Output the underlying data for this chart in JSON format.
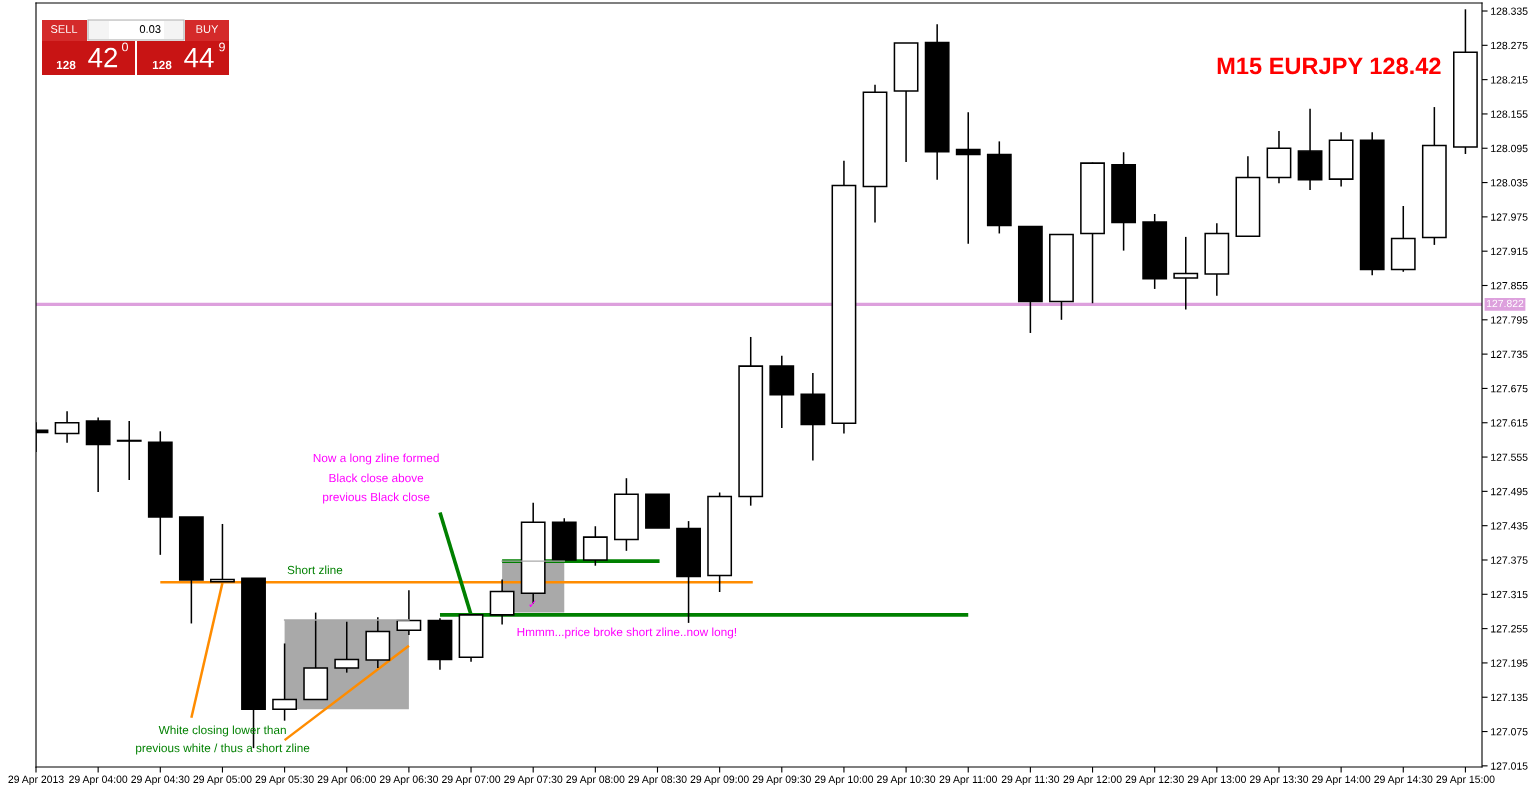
{
  "chart_data": {
    "type": "candlestick",
    "title": "M15 EURJPY 128.42",
    "x": [
      "2013-04-29T03:30",
      "2013-04-29T03:45",
      "2013-04-29T04:00",
      "2013-04-29T04:15",
      "2013-04-29T04:30",
      "2013-04-29T04:45",
      "2013-04-29T05:00",
      "2013-04-29T05:15",
      "2013-04-29T05:30",
      "2013-04-29T05:45",
      "2013-04-29T06:00",
      "2013-04-29T06:15",
      "2013-04-29T06:30",
      "2013-04-29T06:45",
      "2013-04-29T07:00",
      "2013-04-29T07:15",
      "2013-04-29T07:30",
      "2013-04-29T07:45",
      "2013-04-29T08:00",
      "2013-04-29T08:15",
      "2013-04-29T08:30",
      "2013-04-29T08:45",
      "2013-04-29T09:00",
      "2013-04-29T09:15",
      "2013-04-29T09:30",
      "2013-04-29T09:45",
      "2013-04-29T10:00",
      "2013-04-29T10:15",
      "2013-04-29T10:30",
      "2013-04-29T10:45",
      "2013-04-29T11:00",
      "2013-04-29T11:15",
      "2013-04-29T11:30",
      "2013-04-29T11:45",
      "2013-04-29T12:00",
      "2013-04-29T12:15",
      "2013-04-29T12:30",
      "2013-04-29T12:45",
      "2013-04-29T13:00",
      "2013-04-29T13:15",
      "2013-04-29T13:30",
      "2013-04-29T13:45",
      "2013-04-29T14:00",
      "2013-04-29T14:15",
      "2013-04-29T14:30",
      "2013-04-29T14:45",
      "2013-04-29T15:00"
    ],
    "ohlc": [
      [
        127.602,
        127.616,
        127.564,
        127.598
      ],
      [
        127.596,
        127.635,
        127.58,
        127.615
      ],
      [
        127.618,
        127.624,
        127.494,
        127.577
      ],
      [
        127.584,
        127.618,
        127.515,
        127.583
      ],
      [
        127.581,
        127.6,
        127.384,
        127.45
      ],
      [
        127.45,
        127.45,
        127.264,
        127.34
      ],
      [
        127.337,
        127.438,
        127.337,
        127.341
      ],
      [
        127.343,
        127.343,
        127.046,
        127.114
      ],
      [
        127.114,
        127.229,
        127.094,
        127.131
      ],
      [
        127.131,
        127.283,
        127.131,
        127.186
      ],
      [
        127.186,
        127.267,
        127.178,
        127.201
      ],
      [
        127.2,
        127.275,
        127.186,
        127.25
      ],
      [
        127.252,
        127.322,
        127.244,
        127.269
      ],
      [
        127.269,
        127.273,
        127.183,
        127.201
      ],
      [
        127.205,
        127.279,
        127.197,
        127.279
      ],
      [
        127.279,
        127.341,
        127.262,
        127.32
      ],
      [
        127.317,
        127.475,
        127.299,
        127.441
      ],
      [
        127.441,
        127.448,
        127.375,
        127.375
      ],
      [
        127.375,
        127.434,
        127.365,
        127.415
      ],
      [
        127.411,
        127.518,
        127.391,
        127.49
      ],
      [
        127.49,
        127.49,
        127.431,
        127.431
      ],
      [
        127.43,
        127.443,
        127.265,
        127.346
      ],
      [
        127.348,
        127.493,
        127.319,
        127.486
      ],
      [
        127.486,
        127.765,
        127.47,
        127.714
      ],
      [
        127.714,
        127.732,
        127.606,
        127.664
      ],
      [
        127.665,
        127.702,
        127.549,
        127.612
      ],
      [
        127.614,
        128.073,
        127.596,
        128.03
      ],
      [
        128.028,
        128.206,
        127.965,
        128.193
      ],
      [
        128.195,
        128.279,
        128.071,
        128.279
      ],
      [
        128.28,
        128.312,
        128.04,
        128.089
      ],
      [
        128.093,
        128.158,
        127.928,
        128.084
      ],
      [
        128.084,
        128.107,
        127.946,
        127.96
      ],
      [
        127.958,
        127.958,
        127.772,
        127.827
      ],
      [
        127.827,
        127.944,
        127.795,
        127.944
      ],
      [
        127.946,
        128.07,
        127.824,
        128.069
      ],
      [
        128.066,
        128.088,
        127.916,
        127.965
      ],
      [
        127.966,
        127.98,
        127.849,
        127.867
      ],
      [
        127.868,
        127.94,
        127.813,
        127.876
      ],
      [
        127.875,
        127.964,
        127.837,
        127.946
      ],
      [
        127.941,
        128.081,
        127.94,
        128.044
      ],
      [
        128.044,
        128.125,
        128.034,
        128.095
      ],
      [
        128.09,
        128.164,
        128.022,
        128.04
      ],
      [
        128.041,
        128.123,
        128.028,
        128.109
      ],
      [
        128.109,
        128.123,
        127.873,
        127.883
      ],
      [
        127.883,
        127.994,
        127.879,
        127.937
      ],
      [
        127.939,
        128.167,
        127.926,
        128.1
      ],
      [
        128.097,
        128.338,
        128.085,
        128.263
      ]
    ],
    "series": [
      {
        "type": "line",
        "color": "#a9a9a9",
        "x": [
          "2013-04-29T05:30",
          "2013-04-29T06:30"
        ],
        "values": [
          127.27,
          127.27
        ],
        "lower": [
          127.114,
          127.114
        ],
        "upper": [
          127.27,
          127.27
        ]
      },
      {
        "type": "line",
        "color": "#a9a9a9",
        "x": [
          "2013-04-29T07:15",
          "2013-04-29T07:45"
        ],
        "values": [
          127.373,
          127.373
        ],
        "lower": [
          127.283,
          127.283
        ],
        "upper": [
          127.373,
          127.373
        ]
      },
      {
        "type": "line",
        "color": "#ff8c00",
        "x": [
          "2013-04-29T04:30",
          "2013-04-29T09:16"
        ],
        "values": [
          127.336,
          127.336
        ]
      },
      {
        "type": "line",
        "color": "#ff8c00",
        "x": [
          "2013-04-29T04:45",
          "2013-04-29T05:00"
        ],
        "values": [
          127.099,
          127.335
        ]
      },
      {
        "type": "line",
        "color": "#ff8c00",
        "x": [
          "2013-04-29T05:30",
          "2013-04-29T06:30"
        ],
        "values": [
          127.06,
          127.225
        ]
      },
      {
        "type": "line",
        "color": "#008000",
        "x": [
          "2013-04-29T07:15",
          "2013-04-29T08:31"
        ],
        "values": [
          127.373,
          127.373
        ]
      },
      {
        "type": "line",
        "color": "#008000",
        "x": [
          "2013-04-29T06:45",
          "2013-04-29T11:00"
        ],
        "values": [
          127.279,
          127.279
        ]
      },
      {
        "type": "line",
        "color": "#008000",
        "x": [
          "2013-04-29T06:45",
          "2013-04-29T07:00"
        ],
        "values": [
          127.458,
          127.279
        ]
      }
    ],
    "ref_lines": [
      {
        "axis": "y",
        "value": 127.822,
        "label": "127.822",
        "color": "#dda0dd"
      }
    ],
    "annotations": [
      "Short zline",
      "White closing lower than",
      "previous white / thus a short zline",
      "Now a long zline formed",
      "Black close above",
      "previous Black close",
      "Hmmm...price broke short zline..now long!",
      "✓",
      "SELL",
      "0.03",
      "BUY",
      "128",
      "42",
      "0",
      "128",
      "44",
      "9"
    ],
    "xlim": [
      "2013-04-29T03:30",
      "2013-04-29T15:08"
    ],
    "xticks": [
      {
        "value": "2013-04-29T03:30",
        "label": "29 Apr 2013"
      },
      {
        "value": "2013-04-29T04:00",
        "label": "29 Apr 04:00"
      },
      {
        "value": "2013-04-29T04:30",
        "label": "29 Apr 04:30"
      },
      {
        "value": "2013-04-29T05:00",
        "label": "29 Apr 05:00"
      },
      {
        "value": "2013-04-29T05:30",
        "label": "29 Apr 05:30"
      },
      {
        "value": "2013-04-29T06:00",
        "label": "29 Apr 06:00"
      },
      {
        "value": "2013-04-29T06:30",
        "label": "29 Apr 06:30"
      },
      {
        "value": "2013-04-29T07:00",
        "label": "29 Apr 07:00"
      },
      {
        "value": "2013-04-29T07:30",
        "label": "29 Apr 07:30"
      },
      {
        "value": "2013-04-29T08:00",
        "label": "29 Apr 08:00"
      },
      {
        "value": "2013-04-29T08:30",
        "label": "29 Apr 08:30"
      },
      {
        "value": "2013-04-29T09:00",
        "label": "29 Apr 09:00"
      },
      {
        "value": "2013-04-29T09:30",
        "label": "29 Apr 09:30"
      },
      {
        "value": "2013-04-29T10:00",
        "label": "29 Apr 10:00"
      },
      {
        "value": "2013-04-29T10:30",
        "label": "29 Apr 10:30"
      },
      {
        "value": "2013-04-29T11:00",
        "label": "29 Apr 11:00"
      },
      {
        "value": "2013-04-29T11:30",
        "label": "29 Apr 11:30"
      },
      {
        "value": "2013-04-29T12:00",
        "label": "29 Apr 12:00"
      },
      {
        "value": "2013-04-29T12:30",
        "label": "29 Apr 12:30"
      },
      {
        "value": "2013-04-29T13:00",
        "label": "29 Apr 13:00"
      },
      {
        "value": "2013-04-29T13:30",
        "label": "29 Apr 13:30"
      },
      {
        "value": "2013-04-29T14:00",
        "label": "29 Apr 14:00"
      },
      {
        "value": "2013-04-29T14:30",
        "label": "29 Apr 14:30"
      },
      {
        "value": "2013-04-29T15:00",
        "label": "29 Apr 15:00"
      }
    ],
    "ylim": [
      127.013,
      128.349
    ],
    "yticks": [
      128.335,
      128.275,
      128.215,
      128.155,
      128.095,
      128.035,
      127.975,
      127.915,
      127.855,
      127.795,
      127.735,
      127.675,
      127.615,
      127.555,
      127.495,
      127.435,
      127.375,
      127.315,
      127.255,
      127.195,
      127.135,
      127.075,
      127.015
    ],
    "grid": false
  }
}
